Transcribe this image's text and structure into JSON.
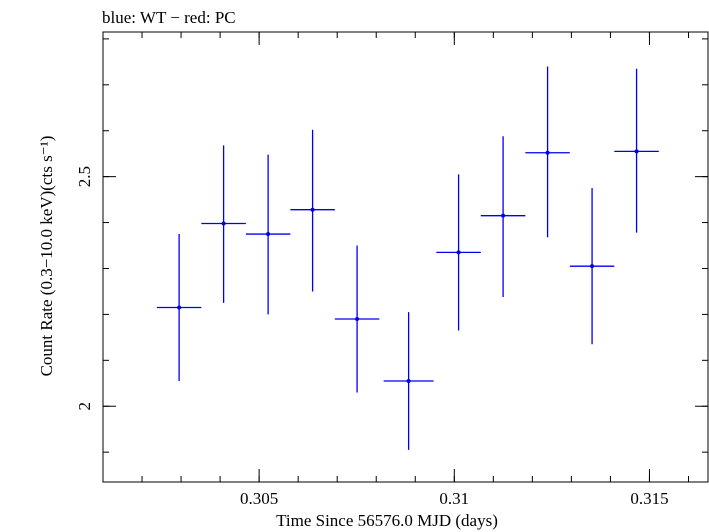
{
  "chart_data": {
    "type": "scatter",
    "title": "blue: WT − red: PC",
    "xlabel": "Time Since 56576.0 MJD (days)",
    "ylabel": "Count Rate (0.3−10.0 keV)(cts s⁻¹)",
    "xlim": [
      0.301,
      0.3165
    ],
    "ylim": [
      1.835,
      2.815
    ],
    "x_ticks": [
      {
        "value": 0.305,
        "label": "0.305"
      },
      {
        "value": 0.31,
        "label": "0.31"
      },
      {
        "value": 0.315,
        "label": "0.315"
      }
    ],
    "y_ticks": [
      {
        "value": 2.0,
        "label": "2"
      },
      {
        "value": 2.5,
        "label": "2.5"
      }
    ],
    "x_minor_step": 0.001,
    "y_minor_step": 0.1,
    "grid": false,
    "legend": "none",
    "series_color": "#0000ee",
    "series": [
      {
        "points": [
          {
            "x": 0.30295,
            "y": 2.215,
            "x_err": 0.00057,
            "y_low": 2.055,
            "y_high": 2.375
          },
          {
            "x": 0.30409,
            "y": 2.398,
            "x_err": 0.00057,
            "y_low": 2.225,
            "y_high": 2.568
          },
          {
            "x": 0.30523,
            "y": 2.375,
            "x_err": 0.00057,
            "y_low": 2.2,
            "y_high": 2.548
          },
          {
            "x": 0.30637,
            "y": 2.428,
            "x_err": 0.00057,
            "y_low": 2.25,
            "y_high": 2.602
          },
          {
            "x": 0.30751,
            "y": 2.19,
            "x_err": 0.00057,
            "y_low": 2.03,
            "y_high": 2.35
          },
          {
            "x": 0.30883,
            "y": 2.055,
            "x_err": 0.00064,
            "y_low": 1.905,
            "y_high": 2.205
          },
          {
            "x": 0.31011,
            "y": 2.335,
            "x_err": 0.00057,
            "y_low": 2.165,
            "y_high": 2.505
          },
          {
            "x": 0.31125,
            "y": 2.415,
            "x_err": 0.00057,
            "y_low": 2.238,
            "y_high": 2.588
          },
          {
            "x": 0.31239,
            "y": 2.552,
            "x_err": 0.00057,
            "y_low": 2.368,
            "y_high": 2.74
          },
          {
            "x": 0.31353,
            "y": 2.305,
            "x_err": 0.00057,
            "y_low": 2.135,
            "y_high": 2.475
          },
          {
            "x": 0.31467,
            "y": 2.555,
            "x_err": 0.00057,
            "y_low": 2.378,
            "y_high": 2.735
          }
        ]
      }
    ]
  }
}
